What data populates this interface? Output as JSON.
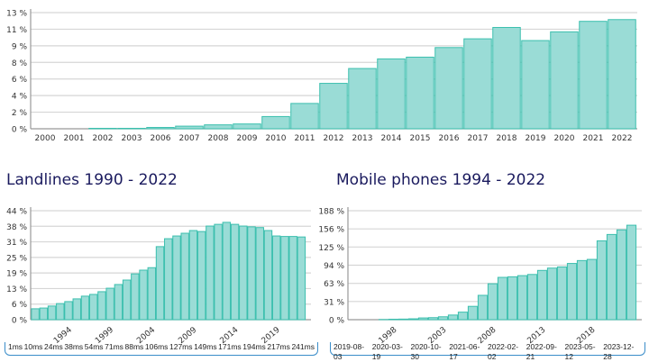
{
  "colors": {
    "bar_fill": "#9adcd6",
    "bar_stroke": "#3bbfae",
    "grid": "#d6d6d6",
    "axis": "#999999",
    "title": "#1a1a5e",
    "tick_text": "#333333",
    "slider_border": "#3a8dc9"
  },
  "chart_data": [
    {
      "id": "internet",
      "type": "bar",
      "title": "",
      "xlabel": "",
      "ylabel": "",
      "categories": [
        "2000",
        "2001",
        "2002",
        "2003",
        "2006",
        "2007",
        "2008",
        "2009",
        "2010",
        "2011",
        "2012",
        "2013",
        "2014",
        "2015",
        "2016",
        "2017",
        "2018",
        "2019",
        "2020",
        "2021",
        "2022"
      ],
      "values": [
        0,
        0,
        0.05,
        0.05,
        0.15,
        0.3,
        0.45,
        0.55,
        1.4,
        2.9,
        5.2,
        6.9,
        8.0,
        8.2,
        9.3,
        10.3,
        11.6,
        10.1,
        11.1,
        12.3,
        12.5
      ],
      "yticks": [
        "0 %",
        "2 %",
        "4 %",
        "6 %",
        "8 %",
        "9 %",
        "11 %",
        "13 %"
      ],
      "ylim": [
        0,
        13.3
      ],
      "grid": true
    },
    {
      "id": "landlines",
      "type": "bar",
      "title": "Landlines 1990 - 2022",
      "xlabel": "",
      "ylabel": "",
      "categories": [
        "1990",
        "1991",
        "1992",
        "1993",
        "1994",
        "1995",
        "1996",
        "1997",
        "1998",
        "1999",
        "2000",
        "2001",
        "2002",
        "2003",
        "2004",
        "2005",
        "2006",
        "2007",
        "2008",
        "2009",
        "2010",
        "2011",
        "2012",
        "2013",
        "2014",
        "2015",
        "2016",
        "2017",
        "2018",
        "2019",
        "2020",
        "2021",
        "2022"
      ],
      "values": [
        4.4,
        4.7,
        5.5,
        6.5,
        7.3,
        8.4,
        9.5,
        10.2,
        11.3,
        12.7,
        14.2,
        16.0,
        18.5,
        20.0,
        21.0,
        29.5,
        32.7,
        33.8,
        34.9,
        36.0,
        35.6,
        37.8,
        38.5,
        39.3,
        38.5,
        37.8,
        37.5,
        37.2,
        36.0,
        33.8,
        33.6,
        33.6,
        33.4
      ],
      "xtick_labels": [
        "1994",
        "1999",
        "2004",
        "2009",
        "2014",
        "2019"
      ],
      "yticks": [
        "0 %",
        "6 %",
        "13 %",
        "19 %",
        "25 %",
        "31 %",
        "38 %",
        "44 %"
      ],
      "ylim": [
        0,
        44
      ],
      "grid": true,
      "slider_labels": [
        "1ms",
        "10ms",
        "24ms",
        "38ms",
        "54ms",
        "71ms",
        "88ms",
        "106ms",
        "127ms",
        "149ms",
        "171ms",
        "194ms",
        "217ms",
        "241ms"
      ]
    },
    {
      "id": "mobile",
      "type": "bar",
      "title": "Mobile phones 1994 - 2022",
      "xlabel": "",
      "ylabel": "",
      "categories": [
        "1994",
        "1995",
        "1996",
        "1997",
        "1998",
        "1999",
        "2000",
        "2001",
        "2002",
        "2003",
        "2004",
        "2005",
        "2006",
        "2007",
        "2008",
        "2009",
        "2010",
        "2011",
        "2012",
        "2013",
        "2014",
        "2015",
        "2016",
        "2017",
        "2018",
        "2019",
        "2020",
        "2021",
        "2022"
      ],
      "values": [
        0,
        0,
        0,
        0.3,
        0.8,
        1.0,
        1.5,
        3.0,
        3.5,
        5.0,
        8.0,
        13.0,
        23.0,
        42.0,
        62.0,
        73.0,
        74.0,
        76.0,
        78.0,
        85.0,
        89.0,
        91.0,
        97.0,
        102.0,
        104.0,
        136.0,
        147.0,
        155.0,
        163.0
      ],
      "xtick_labels": [
        "1998",
        "2003",
        "2008",
        "2013",
        "2018"
      ],
      "yticks": [
        "0 %",
        "31 %",
        "63 %",
        "94 %",
        "125 %",
        "156 %",
        "188 %"
      ],
      "ylim": [
        0,
        188
      ],
      "grid": true,
      "slider_labels": [
        "2019-08-03",
        "2020-03-19",
        "2020-10-30",
        "2021-06-17",
        "2022-02-02",
        "2022-09-21",
        "2023-05-12",
        "2023-12-28"
      ]
    }
  ]
}
